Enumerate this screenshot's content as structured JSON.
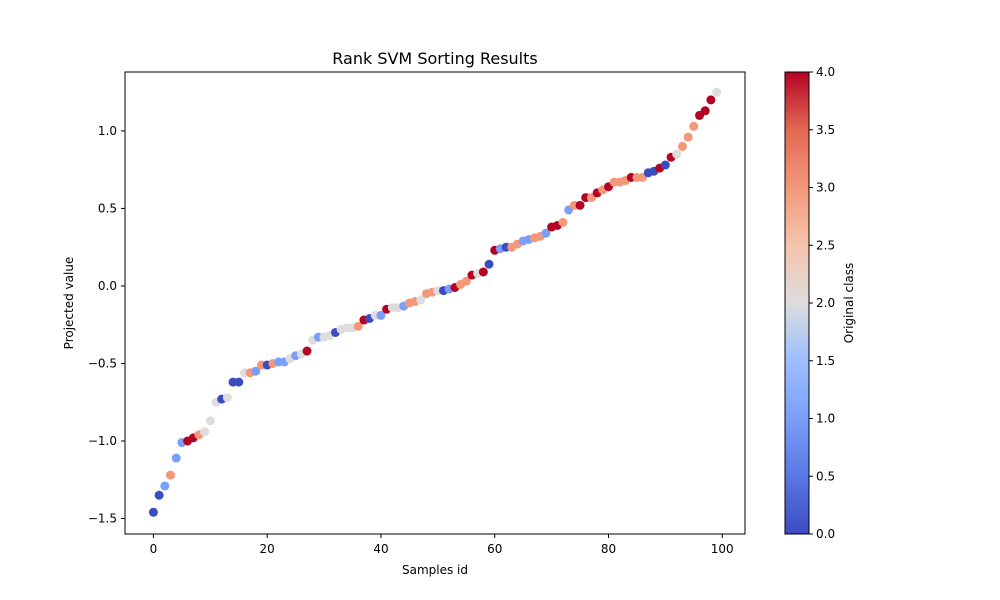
{
  "chart_data": {
    "type": "scatter",
    "title": "Rank SVM Sorting Results",
    "xlabel": "Samples id",
    "ylabel": "Projected value",
    "xlim": [
      -5,
      104
    ],
    "ylim": [
      -1.6,
      1.38
    ],
    "xticks": [
      0,
      20,
      40,
      60,
      80,
      100
    ],
    "yticks": [
      -1.5,
      -1.0,
      -0.5,
      0.0,
      0.5,
      1.0
    ],
    "ytick_labels": [
      "−1.5",
      "−1.0",
      "−0.5",
      "0.0",
      "0.5",
      "1.0"
    ],
    "grid": false,
    "colormap": "coolwarm",
    "colorbar": {
      "label": "Original class",
      "range": [
        0.0,
        4.0
      ],
      "ticks": [
        0.0,
        0.5,
        1.0,
        1.5,
        2.0,
        2.5,
        3.0,
        3.5,
        4.0
      ],
      "tick_labels": [
        "0.0",
        "0.5",
        "1.0",
        "1.5",
        "2.0",
        "2.5",
        "3.0",
        "3.5",
        "4.0"
      ]
    },
    "x": [
      0,
      1,
      2,
      3,
      4,
      5,
      6,
      7,
      8,
      9,
      10,
      11,
      12,
      13,
      14,
      15,
      16,
      17,
      18,
      19,
      20,
      21,
      22,
      23,
      24,
      25,
      26,
      27,
      28,
      29,
      30,
      31,
      32,
      33,
      34,
      35,
      36,
      37,
      38,
      39,
      40,
      41,
      42,
      43,
      44,
      45,
      46,
      47,
      48,
      49,
      50,
      51,
      52,
      53,
      54,
      55,
      56,
      57,
      58,
      59,
      60,
      61,
      62,
      63,
      64,
      65,
      66,
      67,
      68,
      69,
      70,
      71,
      72,
      73,
      74,
      75,
      76,
      77,
      78,
      79,
      80,
      81,
      82,
      83,
      84,
      85,
      86,
      87,
      88,
      89,
      90,
      91,
      92,
      93,
      94,
      95,
      96,
      97,
      98,
      99
    ],
    "y": [
      -1.46,
      -1.35,
      -1.29,
      -1.22,
      -1.11,
      -1.01,
      -1.0,
      -0.98,
      -0.96,
      -0.94,
      -0.87,
      -0.75,
      -0.73,
      -0.72,
      -0.62,
      -0.62,
      -0.56,
      -0.56,
      -0.55,
      -0.51,
      -0.51,
      -0.5,
      -0.49,
      -0.49,
      -0.47,
      -0.45,
      -0.44,
      -0.42,
      -0.35,
      -0.33,
      -0.33,
      -0.32,
      -0.3,
      -0.28,
      -0.27,
      -0.27,
      -0.26,
      -0.22,
      -0.21,
      -0.19,
      -0.19,
      -0.15,
      -0.14,
      -0.14,
      -0.13,
      -0.11,
      -0.1,
      -0.09,
      -0.05,
      -0.04,
      -0.03,
      -0.03,
      -0.02,
      -0.01,
      0.01,
      0.03,
      0.07,
      0.08,
      0.09,
      0.14,
      0.23,
      0.24,
      0.25,
      0.25,
      0.27,
      0.29,
      0.3,
      0.31,
      0.32,
      0.34,
      0.38,
      0.39,
      0.41,
      0.49,
      0.52,
      0.52,
      0.57,
      0.57,
      0.6,
      0.62,
      0.64,
      0.67,
      0.67,
      0.68,
      0.7,
      0.7,
      0.7,
      0.73,
      0.74,
      0.76,
      0.78,
      0.83,
      0.85,
      0.9,
      0.96,
      1.03,
      1.1,
      1.13,
      1.2,
      1.25
    ],
    "class": [
      0,
      0,
      1,
      3,
      1,
      1,
      4,
      4,
      3,
      2,
      2,
      2,
      0,
      2,
      0,
      0,
      2,
      3,
      1,
      3,
      0,
      3,
      1,
      1,
      2,
      1,
      2,
      4,
      2,
      1,
      2,
      2,
      0,
      2,
      2,
      2,
      3,
      4,
      0,
      2,
      1,
      4,
      2,
      2,
      1,
      3,
      3,
      2,
      3,
      3,
      2,
      0,
      1,
      4,
      3,
      3,
      4,
      2,
      4,
      0,
      4,
      1,
      0,
      3,
      3,
      1,
      1,
      3,
      3,
      1,
      4,
      4,
      3,
      1,
      3,
      4,
      4,
      3,
      4,
      3,
      4,
      3,
      3,
      3,
      4,
      3,
      3,
      0,
      0,
      4,
      0,
      4,
      2,
      3,
      3,
      3,
      4,
      4,
      4,
      2
    ]
  }
}
